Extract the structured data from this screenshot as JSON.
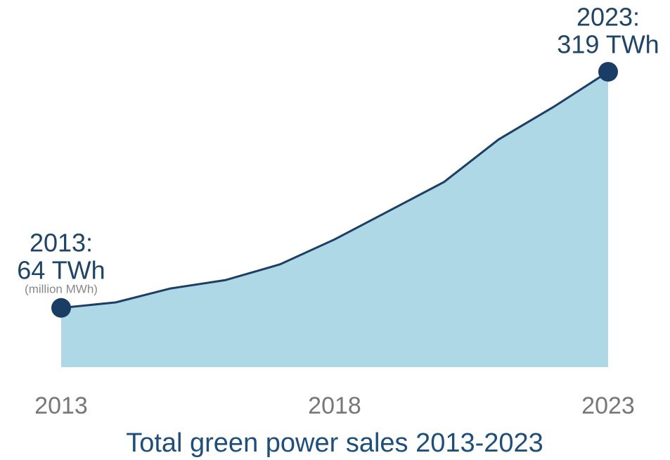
{
  "chart_data": {
    "type": "area",
    "title": "Total green power sales 2013-2023",
    "x": [
      2013,
      2014,
      2015,
      2016,
      2017,
      2018,
      2019,
      2020,
      2021,
      2022,
      2023
    ],
    "values": [
      64,
      70,
      85,
      94,
      111,
      138,
      169,
      200,
      246,
      281,
      319
    ],
    "value_labels": [
      "64 TWh",
      null,
      null,
      null,
      null,
      null,
      null,
      null,
      null,
      null,
      "319 TWh"
    ],
    "annotations": [
      "2013:",
      "2023:"
    ],
    "unit_note": "(million MWh)",
    "xlim": [
      2013,
      2023
    ],
    "xticks": [
      2013,
      2018,
      2023
    ],
    "ylim": [
      0,
      335
    ],
    "color": "#aed8e6",
    "line_color": "#1d3f66",
    "marker_color": "#1a3d66"
  }
}
